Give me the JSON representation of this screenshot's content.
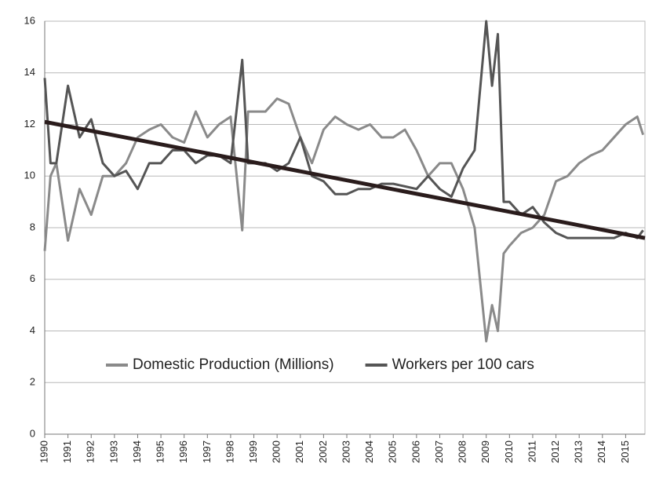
{
  "chart_data": {
    "type": "line",
    "x": [
      1990,
      1990.25,
      1990.5,
      1991,
      1991.5,
      1992,
      1992.5,
      1993,
      1993.5,
      1994,
      1994.5,
      1995,
      1995.5,
      1996,
      1996.5,
      1997,
      1997.5,
      1998,
      1998.5,
      1998.75,
      1999,
      1999.5,
      2000,
      2000.5,
      2001,
      2001.5,
      2002,
      2002.5,
      2003,
      2003.5,
      2004,
      2004.5,
      2005,
      2005.5,
      2006,
      2006.5,
      2007,
      2007.5,
      2008,
      2008.5,
      2009,
      2009.25,
      2009.5,
      2009.75,
      2010,
      2010.5,
      2011,
      2011.5,
      2012,
      2012.5,
      2013,
      2013.5,
      2014,
      2014.5,
      2015,
      2015.5,
      2015.75
    ],
    "series": [
      {
        "name": "Domestic Production (Millions)",
        "color": "#8a8a8a",
        "values": [
          7.1,
          10,
          10.5,
          7.5,
          9.5,
          8.5,
          10,
          10,
          10.5,
          11.5,
          11.8,
          12,
          11.5,
          11.3,
          12.5,
          11.5,
          12,
          12.3,
          7.9,
          12.5,
          12.5,
          12.5,
          13,
          12.8,
          11.5,
          10.5,
          11.8,
          12.3,
          12,
          11.8,
          12,
          11.5,
          11.5,
          11.8,
          11,
          10,
          10.5,
          10.5,
          9.5,
          8,
          3.6,
          5,
          4,
          7,
          7.3,
          7.8,
          8,
          8.5,
          9.8,
          10,
          10.5,
          10.8,
          11,
          11.5,
          12,
          12.3,
          11.6
        ]
      },
      {
        "name": "Workers per 100 cars",
        "color": "#555555",
        "values": [
          13.8,
          10.5,
          10.5,
          13.5,
          11.5,
          12.2,
          10.5,
          10,
          10.2,
          9.5,
          10.5,
          10.5,
          11,
          11,
          10.5,
          10.8,
          10.8,
          10.5,
          14.5,
          10.5,
          10.5,
          10.5,
          10.2,
          10.5,
          11.5,
          10,
          9.8,
          9.3,
          9.3,
          9.5,
          9.5,
          9.7,
          9.7,
          9.6,
          9.5,
          10,
          9.5,
          9.2,
          10.3,
          11,
          16,
          13.5,
          15.5,
          9,
          9,
          8.5,
          8.8,
          8.2,
          7.8,
          7.6,
          7.6,
          7.6,
          7.6,
          7.6,
          7.8,
          7.6,
          7.9
        ]
      }
    ],
    "trend": {
      "x": [
        1990,
        2015.83
      ],
      "values": [
        12.1,
        7.6
      ],
      "color": "#2a1c1c"
    },
    "xlim": [
      1990,
      2015.83
    ],
    "xticks": [
      1990,
      1991,
      1992,
      1993,
      1994,
      1995,
      1996,
      1997,
      1998,
      1999,
      2000,
      2001,
      2002,
      2003,
      2004,
      2005,
      2006,
      2007,
      2008,
      2009,
      2010,
      2011,
      2012,
      2013,
      2014,
      2015
    ],
    "ylim": [
      0,
      16
    ],
    "yticks": [
      0,
      2,
      4,
      6,
      8,
      10,
      12,
      14,
      16
    ],
    "grid": true
  }
}
